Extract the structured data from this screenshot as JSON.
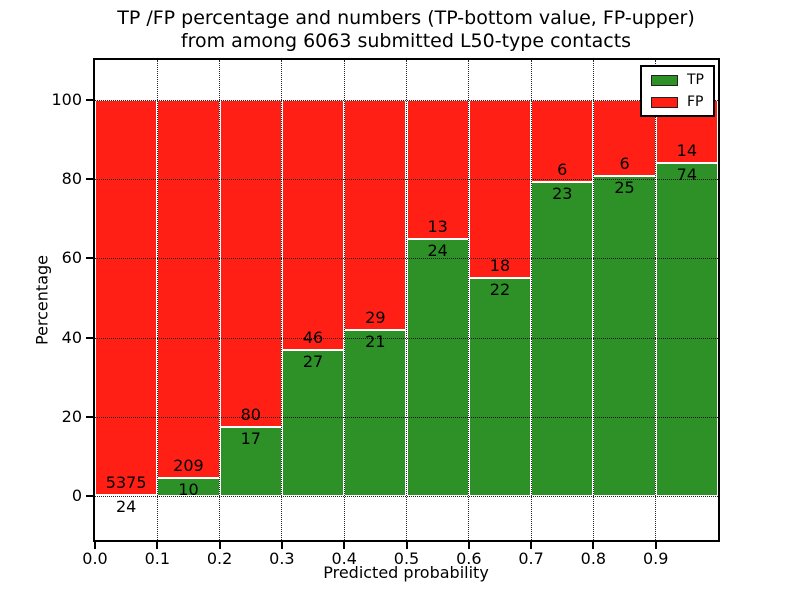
{
  "chart_data": {
    "type": "bar",
    "stacked": true,
    "title": "TP /FP percentage and numbers (TP-bottom value, FP-upper)",
    "subtitle": "from among 6063 submitted L50-type contacts",
    "total_contacts": 6063,
    "xlabel": "Predicted probability",
    "ylabel": "Percentage",
    "xlim": [
      0.0,
      1.0
    ],
    "ylim": [
      -11,
      110
    ],
    "yticks": [
      "0",
      "20",
      "40",
      "60",
      "80",
      "100"
    ],
    "ytick_values": [
      0,
      20,
      40,
      60,
      80,
      100
    ],
    "xticks": [
      "0.0",
      "0.1",
      "0.2",
      "0.3",
      "0.4",
      "0.5",
      "0.6",
      "0.7",
      "0.8",
      "0.9"
    ],
    "grid_style": "dotted",
    "colors": {
      "tp": "#2d9127",
      "fp": "#ff1f15",
      "bar_edge": "#ffffff",
      "axes": "#000000",
      "background": "#ffffff"
    },
    "legend": {
      "position": "upper right",
      "entries": [
        {
          "label": "TP",
          "color": "#2d9127"
        },
        {
          "label": "FP",
          "color": "#ff1f15"
        }
      ]
    },
    "bars": [
      {
        "range": "0.0-0.1",
        "tp": 24,
        "fp": 5375,
        "tp_pct": 0.44
      },
      {
        "range": "0.1-0.2",
        "tp": 10,
        "fp": 209,
        "tp_pct": 4.57
      },
      {
        "range": "0.2-0.3",
        "tp": 17,
        "fp": 80,
        "tp_pct": 17.53
      },
      {
        "range": "0.3-0.4",
        "tp": 27,
        "fp": 46,
        "tp_pct": 36.99
      },
      {
        "range": "0.4-0.5",
        "tp": 21,
        "fp": 29,
        "tp_pct": 42.0
      },
      {
        "range": "0.5-0.6",
        "tp": 24,
        "fp": 13,
        "tp_pct": 64.86
      },
      {
        "range": "0.6-0.7",
        "tp": 22,
        "fp": 18,
        "tp_pct": 55.0
      },
      {
        "range": "0.7-0.8",
        "tp": 23,
        "fp": 6,
        "tp_pct": 79.31
      },
      {
        "range": "0.8-0.9",
        "tp": 25,
        "fp": 6,
        "tp_pct": 80.65
      },
      {
        "range": "0.9-1.0",
        "tp": 74,
        "fp": 14,
        "tp_pct": 84.09
      }
    ]
  }
}
